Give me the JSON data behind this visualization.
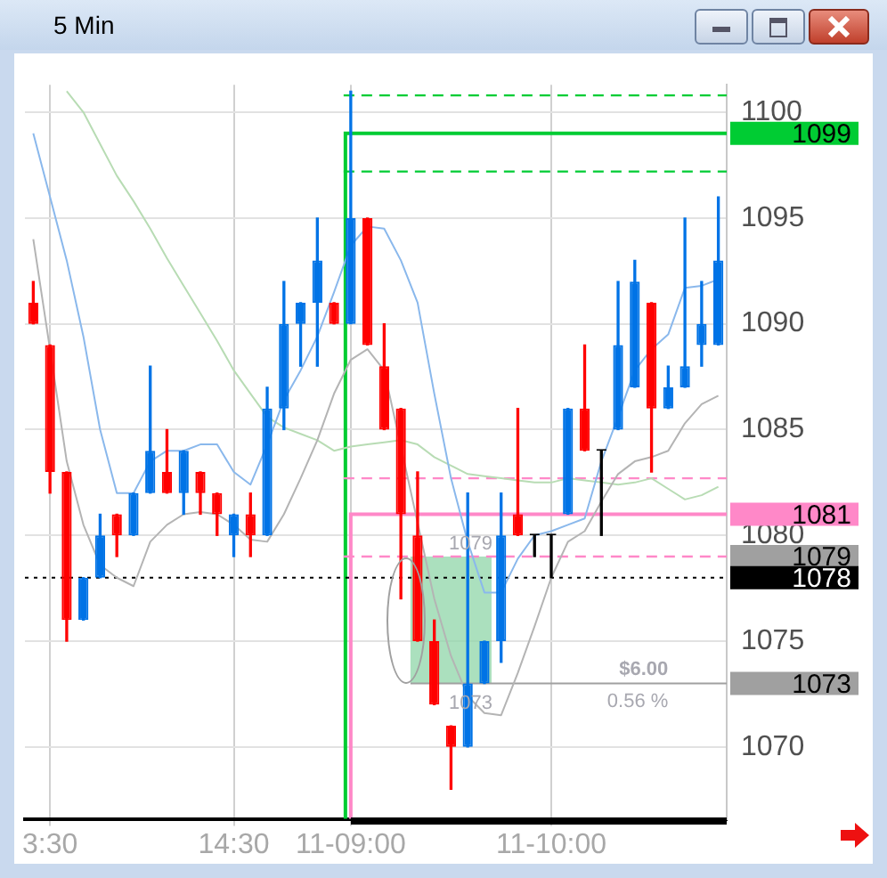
{
  "chart_data": {
    "type": "candlestick",
    "title": "5 Min",
    "categories": [
      null,
      "3:30",
      null,
      null,
      null,
      null,
      null,
      null,
      null,
      null,
      null,
      null,
      "14:30",
      null,
      null,
      null,
      null,
      null,
      null,
      "11-09:00",
      null,
      null,
      null,
      null,
      null,
      null,
      null,
      null,
      null,
      null,
      null,
      "11-10:00",
      null,
      null,
      null,
      null,
      null,
      null,
      null,
      null,
      null,
      null
    ],
    "ohlc": [
      [
        1091,
        1092,
        1090,
        1090
      ],
      [
        1089,
        1089,
        1082,
        1083
      ],
      [
        1083,
        1083,
        1075,
        1076
      ],
      [
        1076,
        1078,
        1076,
        1078
      ],
      [
        1078,
        1081,
        1078,
        1080
      ],
      [
        1081,
        1081,
        1079,
        1080
      ],
      [
        1080,
        1082,
        1080,
        1082
      ],
      [
        1082,
        1088,
        1082,
        1084
      ],
      [
        1083,
        1085,
        1082,
        1082
      ],
      [
        1082,
        1084,
        1081,
        1084
      ],
      [
        1083,
        1083,
        1081,
        1082
      ],
      [
        1082,
        1082,
        1080,
        1081
      ],
      [
        1080,
        1081,
        1079,
        1081
      ],
      [
        1081,
        1082,
        1079,
        1080
      ],
      [
        1080,
        1087,
        1080,
        1086
      ],
      [
        1086,
        1092,
        1085,
        1090
      ],
      [
        1090,
        1091,
        1088,
        1091
      ],
      [
        1091,
        1095,
        1088,
        1093
      ],
      [
        1091,
        1091,
        1090,
        1090
      ],
      [
        1090,
        1101,
        1090,
        1095
      ],
      [
        1095,
        1095,
        1089,
        1089
      ],
      [
        1088,
        1090,
        1085,
        1085
      ],
      [
        1086,
        1086,
        1077,
        1081
      ],
      [
        1080,
        1083,
        1075,
        1075
      ],
      [
        1075,
        1076,
        1072,
        1072
      ],
      [
        1071,
        1071,
        1068,
        1070
      ],
      [
        1070,
        1082,
        1070,
        1073
      ],
      [
        1073,
        1075,
        1073,
        1075
      ],
      [
        1075,
        1082,
        1074,
        1080
      ],
      [
        1081,
        1086,
        1080,
        1080
      ],
      [
        1080,
        1080,
        1079,
        1080
      ],
      [
        1080,
        1080,
        1078,
        1080
      ],
      [
        1081,
        1086,
        1081,
        1086
      ],
      [
        1086,
        1089,
        1084,
        1084
      ],
      [
        1084,
        1084,
        1080,
        1084
      ],
      [
        1085,
        1092,
        1085,
        1089
      ],
      [
        1087,
        1093,
        1087,
        1092
      ],
      [
        1091,
        1091,
        1083,
        1086
      ],
      [
        1086,
        1088,
        1086,
        1087
      ],
      [
        1087,
        1095,
        1087,
        1088
      ],
      [
        1089,
        1092,
        1088,
        1090
      ],
      [
        1089,
        1096,
        1089,
        1093
      ]
    ],
    "colors": [
      "#ff0000",
      "#ff0000",
      "#ff0000",
      "#0073e6",
      "#0073e6",
      "#ff0000",
      "#0073e6",
      "#0073e6",
      "#ff0000",
      "#0073e6",
      "#ff0000",
      "#ff0000",
      "#0073e6",
      "#ff0000",
      "#0073e6",
      "#0073e6",
      "#0073e6",
      "#0073e6",
      "#ff0000",
      "#0073e6",
      "#ff0000",
      "#ff0000",
      "#ff0000",
      "#ff0000",
      "#ff0000",
      "#ff0000",
      "#0073e6",
      "#0073e6",
      "#0073e6",
      "#ff0000",
      "#000000",
      "#000000",
      "#0073e6",
      "#ff0000",
      "#000000",
      "#0073e6",
      "#0073e6",
      "#ff0000",
      "#0073e6",
      "#0073e6",
      "#0073e6",
      "#0073e6"
    ],
    "series": [
      {
        "type": "line",
        "color": "#8ab8ec",
        "values": [
          1099,
          1096,
          1093,
          1089.4,
          1085,
          1082,
          1082,
          1083.5,
          1084,
          1084,
          1084.3,
          1084.3,
          1083,
          1082.4,
          1084.3,
          1086.4,
          1087.8,
          1089.4,
          1091.5,
          1093.7,
          1094.6,
          1094.5,
          1093,
          1091,
          1086.7,
          1082.7,
          1079.7,
          1077.3,
          1077.3,
          1078.9,
          1080,
          1080.2,
          1080.5,
          1080.8,
          1083.5,
          1085.6,
          1087.8,
          1088.8,
          1089.5,
          1091.7,
          1091.8,
          1092.1
        ]
      },
      {
        "type": "line",
        "color": "#b4b4b4",
        "values": [
          1094,
          1088.8,
          1083.5,
          1080.5,
          1078.6,
          1078,
          1077.6,
          1079.7,
          1080.5,
          1081,
          1081.1,
          1081,
          1080.5,
          1079.8,
          1079.7,
          1081,
          1082.7,
          1084.5,
          1086.7,
          1088.3,
          1088.8,
          1087.8,
          null,
          null,
          1077,
          1074.3,
          1072.4,
          1071.6,
          1071.5,
          1073.5,
          1075.7,
          1078,
          1079.7,
          1080.2,
          1081.6,
          1082.9,
          1083.5,
          1083.7,
          1084,
          1085.3,
          1086.2,
          1086.6
        ]
      },
      {
        "type": "line",
        "color": "#b8dcb4",
        "values": [
          null,
          null,
          1101,
          1100,
          1098.5,
          1097,
          1095.8,
          1094.5,
          1093.1,
          1091.8,
          1090.5,
          1089.2,
          1087.8,
          1086.7,
          1085.6,
          1085.1,
          1084.8,
          1084.5,
          1084,
          1084.2,
          1084.3,
          1084.4,
          1084.5,
          1084.3,
          1083.7,
          1083.3,
          1082.9,
          1082.8,
          1082.7,
          1082.6,
          1082.5,
          1082.5,
          1082.7,
          1082.6,
          1082.5,
          1082.4,
          1082.5,
          1082.7,
          1082.2,
          1081.7,
          1081.9,
          1082.3
        ]
      }
    ],
    "ylim": [
      1066.6,
      1101.3
    ],
    "yticks": [
      1070,
      1075,
      1080,
      1085,
      1090,
      1095,
      1100
    ],
    "grid": true,
    "legend": false,
    "ref_lines": [
      {
        "axis": "y",
        "value": 1100.8,
        "color": "#00cc33",
        "line_style": "dashed"
      },
      {
        "axis": "y",
        "value": 1099,
        "label": "1099",
        "color": "#00cc33",
        "line_style": "solid"
      },
      {
        "axis": "y",
        "value": 1097.2,
        "color": "#00cc33",
        "line_style": "dashed"
      },
      {
        "axis": "y",
        "value": 1082.7,
        "color": "#ff88c8",
        "line_style": "dashed"
      },
      {
        "axis": "y",
        "value": 1081,
        "label": "1081",
        "color": "#ff88c8",
        "line_style": "solid"
      },
      {
        "axis": "y",
        "value": 1079,
        "label": "1079",
        "color": "#ff88c8",
        "line_style": "dashed"
      },
      {
        "axis": "y",
        "value": 1078,
        "label": "1078",
        "color": "#000000",
        "line_style": "dotted"
      },
      {
        "axis": "y",
        "value": 1073,
        "label": "1073",
        "color": "#a0a0a0",
        "line_style": "solid"
      }
    ],
    "bands": [
      {
        "axis": "y",
        "from": 1073,
        "to": 1079,
        "color": "#8fd6a8"
      }
    ],
    "annotations": [
      {
        "text": "1079",
        "y": 1079
      },
      {
        "text": "1073",
        "y": 1073
      },
      "$6.00",
      "0.56 %"
    ]
  }
}
